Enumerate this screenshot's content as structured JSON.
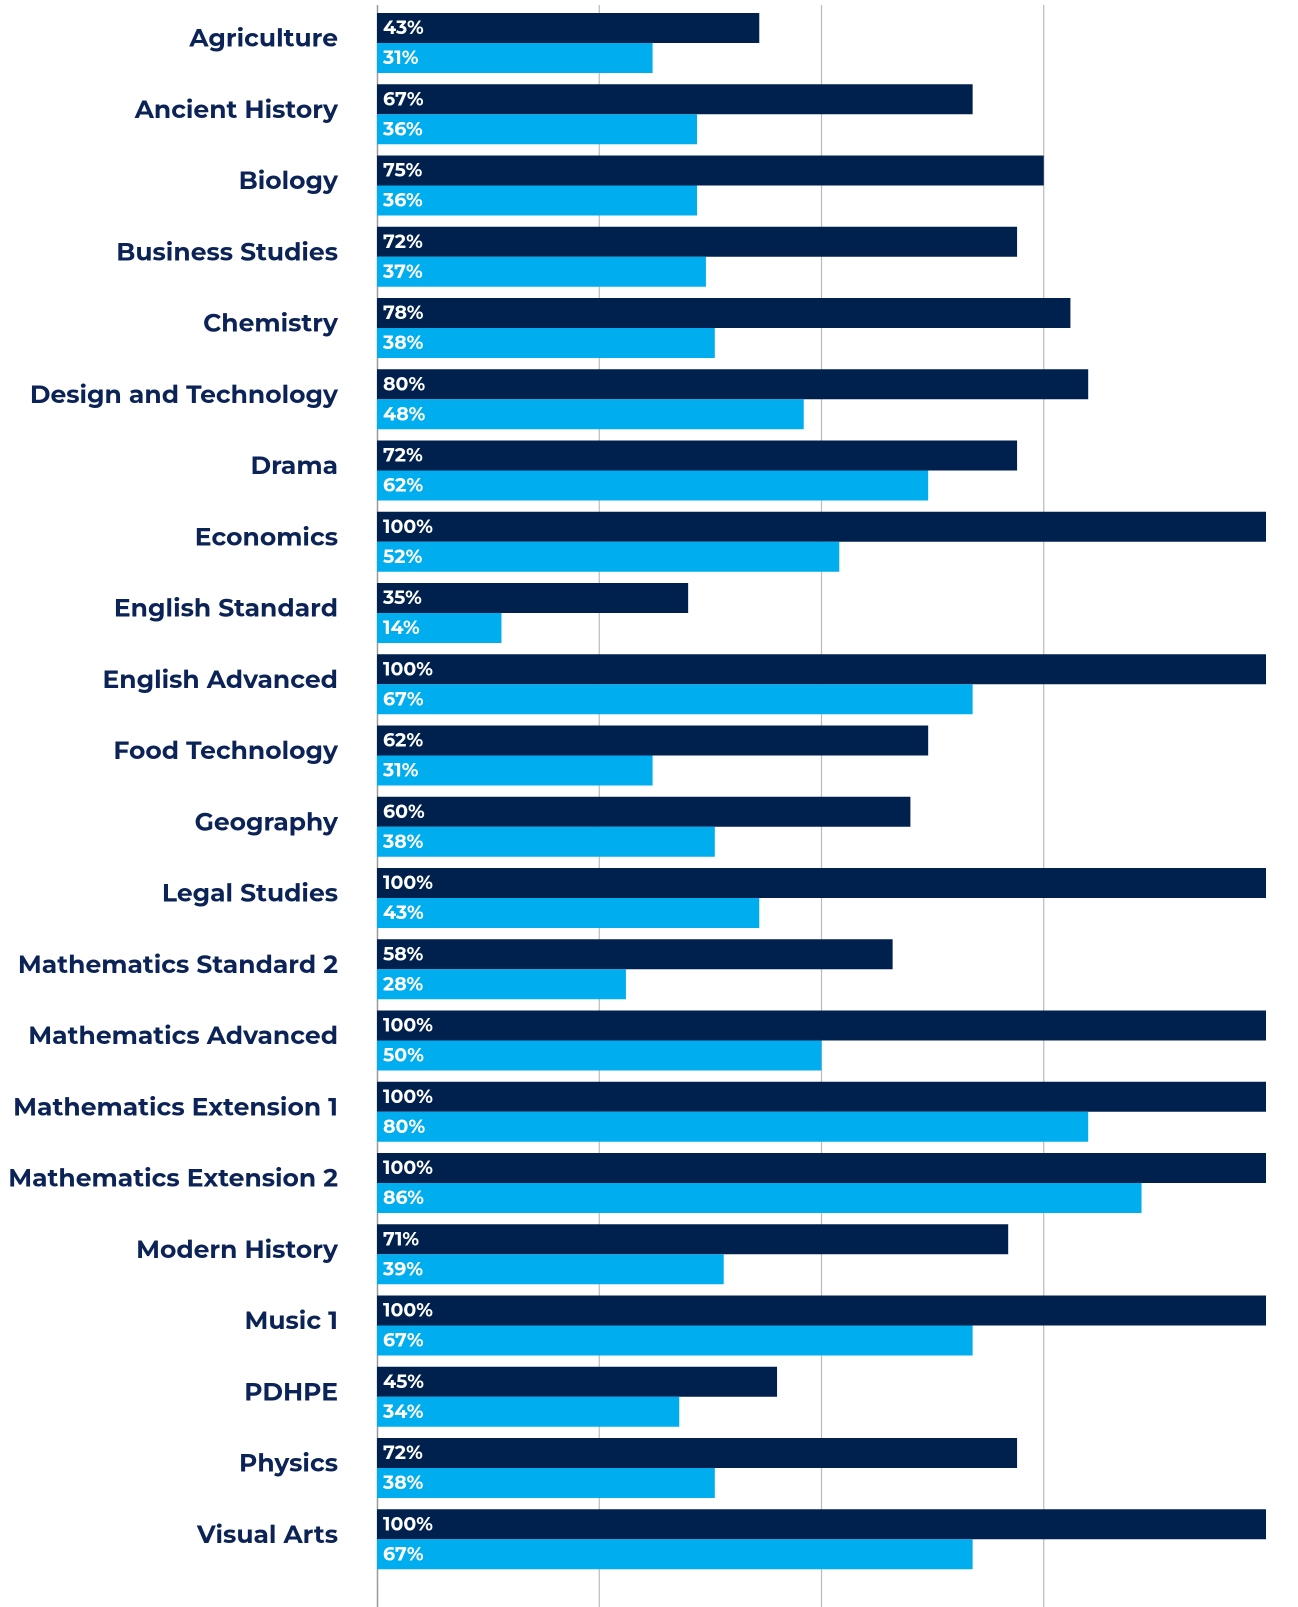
{
  "chart_data": {
    "type": "bar",
    "orientation": "horizontal",
    "categories": [
      "Agriculture",
      "Ancient History",
      "Biology",
      "Business Studies",
      "Chemistry",
      "Design and Technology",
      "Drama",
      "Economics",
      "English Standard",
      "English Advanced",
      "Food Technology",
      "Geography",
      "Legal Studies",
      "Mathematics Standard 2",
      "Mathematics Advanced",
      "Mathematics Extension 1",
      "Mathematics Extension 2",
      "Modern History",
      "Music 1",
      "PDHPE",
      "Physics",
      "Visual Arts"
    ],
    "series": [
      {
        "color": "#00204e",
        "values": [
          43,
          67,
          75,
          72,
          78,
          80,
          72,
          100,
          35,
          100,
          62,
          60,
          100,
          58,
          100,
          100,
          100,
          71,
          100,
          45,
          72,
          100
        ],
        "value_labels": [
          "43%",
          "67%",
          "75%",
          "72%",
          "78%",
          "80%",
          "72%",
          "100%",
          "35%",
          "100%",
          "62%",
          "60%",
          "100%",
          "58%",
          "100%",
          "100%",
          "100%",
          "71%",
          "100%",
          "45%",
          "72%",
          "100%"
        ]
      },
      {
        "color": "#00aeef",
        "values": [
          31,
          36,
          36,
          37,
          38,
          48,
          62,
          52,
          14,
          67,
          31,
          38,
          43,
          28,
          50,
          80,
          86,
          39,
          67,
          34,
          38,
          67
        ],
        "value_labels": [
          "31%",
          "36%",
          "36%",
          "37%",
          "38%",
          "48%",
          "62%",
          "52%",
          "14%",
          "67%",
          "31%",
          "38%",
          "43%",
          "28%",
          "50%",
          "80%",
          "86%",
          "39%",
          "67%",
          "34%",
          "38%",
          "67%"
        ]
      }
    ],
    "xlim": [
      0,
      100
    ],
    "xticks": [
      25,
      50,
      75
    ],
    "grid": true
  }
}
